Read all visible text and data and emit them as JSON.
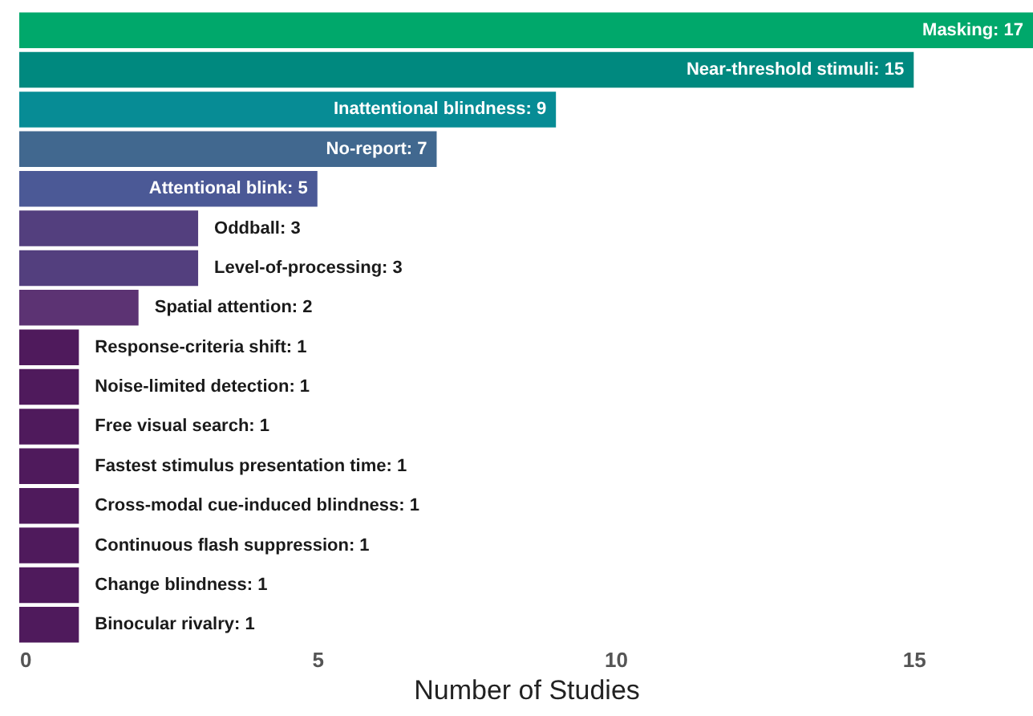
{
  "chart_data": {
    "type": "bar",
    "orientation": "horizontal",
    "xlabel": "Number of Studies",
    "categories": [
      null,
      null,
      null,
      null,
      null,
      null,
      null,
      null,
      null,
      null,
      null,
      null,
      null,
      null,
      null,
      null
    ],
    "values": [
      17,
      15,
      9,
      7,
      5,
      3,
      3,
      2,
      1,
      1,
      1,
      1,
      1,
      1,
      1,
      1
    ],
    "colors": [
      "#00a86b",
      "#00897f",
      "#078c95",
      "#41688f",
      "#4b5996",
      "#533f7e",
      "#533f7e",
      "#5c3373",
      "#4f1a5c",
      "#4f1a5c",
      "#4f1a5c",
      "#4f1a5c",
      "#4f1a5c",
      "#4f1a5c",
      "#4f1a5c",
      "#4f1a5c"
    ],
    "value_labels": [
      "Masking: 17",
      "Near-threshold stimuli: 15",
      "Inattentional blindness: 9",
      "No-report: 7",
      "Attentional blink: 5",
      "Oddball: 3",
      "Level-of-processing: 3",
      "Spatial attention: 2",
      "Response-criteria shift: 1",
      "Noise-limited detection: 1",
      "Free visual search: 1",
      "Fastest stimulus presentation time: 1",
      "Cross-modal cue-induced blindness: 1",
      "Continuous flash suppression: 1",
      "Change blindness: 1",
      "Binocular rivalry: 1"
    ],
    "xlim": [
      0,
      17
    ],
    "xticks": [
      0,
      5,
      10,
      15
    ],
    "tick_labels": "x"
  }
}
